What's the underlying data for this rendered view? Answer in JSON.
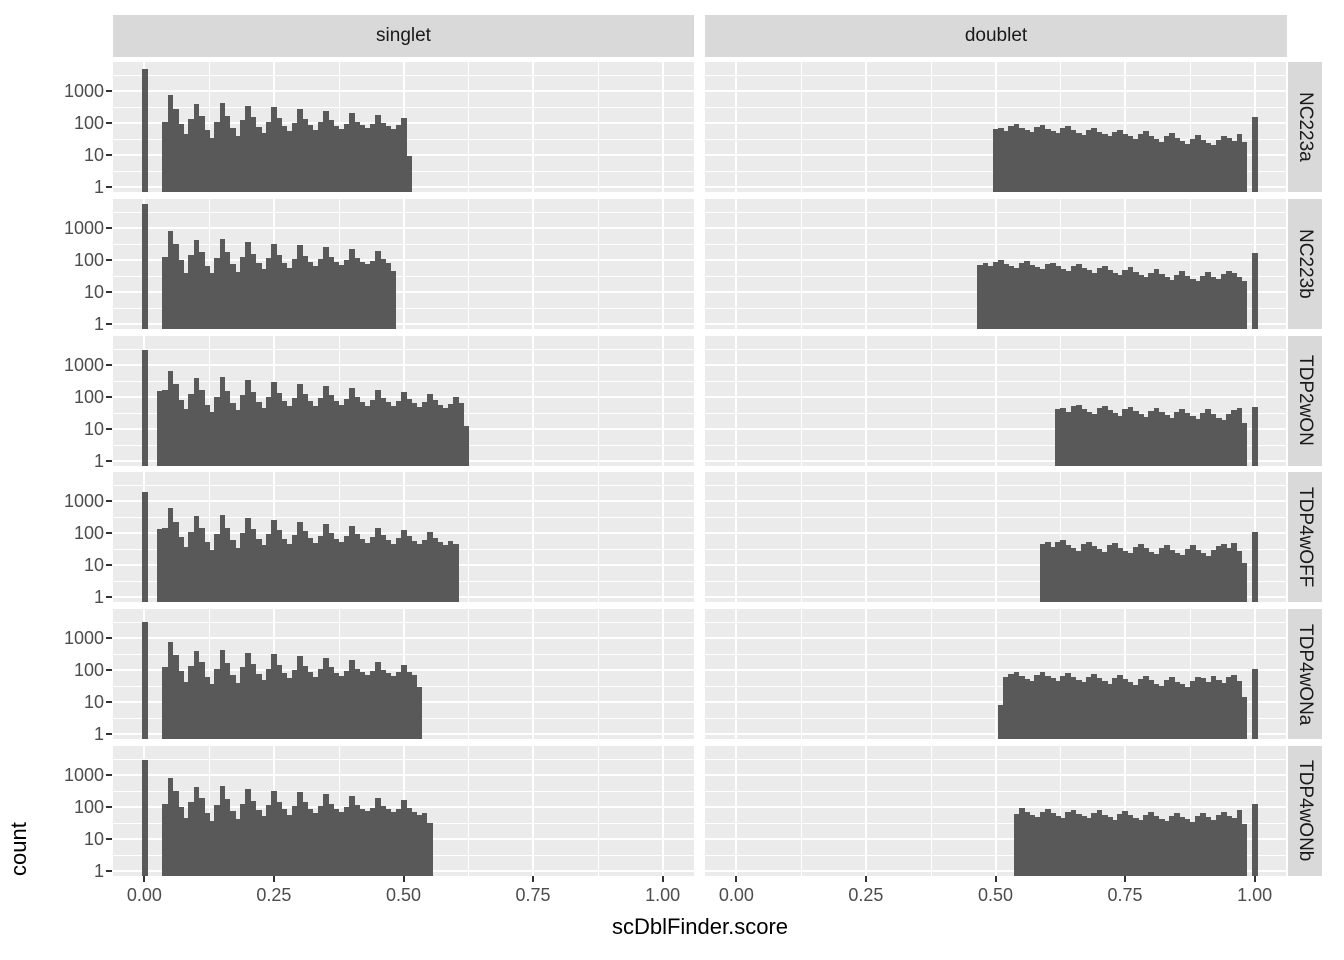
{
  "figure": {
    "xlabel": "scDblFinder.score",
    "ylabel": "count"
  },
  "chart_data": {
    "type": "histogram",
    "title": "",
    "xlabel": "scDblFinder.score",
    "ylabel": "count",
    "legend": "none",
    "grid": true,
    "y_scale": "log10",
    "facet_cols": [
      "singlet",
      "doublet"
    ],
    "facet_rows": [
      "NC223a",
      "NC223b",
      "TDP2wON",
      "TDP4wOFF",
      "TDP4wONa",
      "TDP4wONb"
    ],
    "x_ticks": {
      "values": [
        0,
        0.25,
        0.5,
        0.75,
        1
      ],
      "labels": [
        "0.00",
        "0.25",
        "0.50",
        "0.75",
        "1.00"
      ]
    },
    "y_ticks": {
      "values": [
        1,
        10,
        100,
        1000
      ],
      "labels": [
        "1",
        "10",
        "100",
        "1000"
      ]
    },
    "xlim": [
      -0.0605,
      1.0605
    ],
    "ylim_log": [
      0.7,
      8000
    ],
    "grid_minor_x": [
      0.125,
      0.375,
      0.625,
      0.875
    ],
    "grid_minor_y": [
      3.162,
      31.62,
      316.2,
      3162
    ],
    "bin_width": 0.01,
    "colors": {
      "bar": "#595959",
      "panel_bg": "#EBEBEB",
      "strip_bg": "#D9D9D9",
      "grid": "#FFFFFF",
      "axis_text": "#4D4D4D",
      "title_text": "#000000"
    },
    "panels": [
      {
        "row": "NC223a",
        "col": "singlet",
        "zero_bar": {
          "x": 0.0,
          "count": 5000
        },
        "run": {
          "x_start": 0.04,
          "counts": [
            110,
            750,
            280,
            90,
            45,
            130,
            400,
            170,
            60,
            35,
            110,
            430,
            160,
            70,
            40,
            120,
            340,
            150,
            75,
            50,
            110,
            310,
            140,
            80,
            55,
            100,
            270,
            130,
            85,
            60,
            105,
            240,
            120,
            80,
            65,
            95,
            210,
            110,
            85,
            70,
            90,
            180,
            100,
            80,
            65,
            85,
            140,
            9
          ]
        }
      },
      {
        "row": "NC223a",
        "col": "doublet",
        "run": {
          "x_start": 0.5,
          "counts": [
            65,
            70,
            58,
            80,
            90,
            72,
            60,
            52,
            75,
            85,
            66,
            55,
            48,
            68,
            78,
            60,
            50,
            42,
            60,
            70,
            54,
            44,
            38,
            52,
            62,
            46,
            38,
            32,
            45,
            55,
            40,
            32,
            26,
            38,
            48,
            34,
            27,
            22,
            32,
            42,
            30,
            24,
            20,
            30,
            40,
            35,
            28,
            45,
            25
          ]
        },
        "one_bar": {
          "x": 1.0,
          "count": 150
        }
      },
      {
        "row": "NC223b",
        "col": "singlet",
        "zero_bar": {
          "x": 0.0,
          "count": 5500
        },
        "run": {
          "x_start": 0.04,
          "counts": [
            120,
            800,
            300,
            95,
            40,
            140,
            420,
            180,
            65,
            38,
            115,
            450,
            170,
            75,
            42,
            125,
            360,
            155,
            78,
            52,
            112,
            320,
            145,
            82,
            57,
            103,
            280,
            135,
            88,
            62,
            107,
            250,
            125,
            83,
            67,
            97,
            220,
            115,
            88,
            72,
            92,
            190,
            105,
            82,
            45
          ]
        }
      },
      {
        "row": "NC223b",
        "col": "doublet",
        "run": {
          "x_start": 0.47,
          "counts": [
            70,
            78,
            62,
            85,
            95,
            76,
            64,
            55,
            80,
            90,
            70,
            58,
            50,
            72,
            82,
            64,
            53,
            45,
            64,
            74,
            57,
            47,
            40,
            55,
            66,
            49,
            40,
            34,
            48,
            58,
            42,
            34,
            28,
            40,
            50,
            36,
            29,
            24,
            34,
            45,
            32,
            26,
            21,
            32,
            42,
            30,
            25,
            35,
            46,
            38,
            30,
            22
          ]
        },
        "one_bar": {
          "x": 1.0,
          "count": 160
        }
      },
      {
        "row": "TDP2wON",
        "col": "singlet",
        "zero_bar": {
          "x": 0.0,
          "count": 2800
        },
        "run": {
          "x_start": 0.03,
          "counts": [
            150,
            160,
            650,
            240,
            80,
            40,
            120,
            380,
            160,
            55,
            32,
            100,
            400,
            150,
            65,
            38,
            110,
            320,
            140,
            70,
            45,
            100,
            280,
            130,
            72,
            50,
            92,
            240,
            120,
            74,
            52,
            88,
            210,
            110,
            72,
            54,
            84,
            185,
            100,
            70,
            52,
            80,
            160,
            92,
            66,
            50,
            74,
            140,
            84,
            62,
            48,
            68,
            120,
            76,
            56,
            44,
            60,
            95,
            62,
            12
          ]
        }
      },
      {
        "row": "TDP2wON",
        "col": "doublet",
        "run": {
          "x_start": 0.62,
          "counts": [
            40,
            45,
            32,
            50,
            55,
            42,
            34,
            28,
            44,
            52,
            38,
            30,
            25,
            40,
            48,
            35,
            28,
            23,
            36,
            45,
            32,
            26,
            21,
            33,
            42,
            30,
            24,
            20,
            30,
            40,
            28,
            22,
            18,
            28,
            38,
            45,
            15
          ]
        },
        "one_bar": {
          "x": 1.0,
          "count": 48
        }
      },
      {
        "row": "TDP4wOFF",
        "col": "singlet",
        "zero_bar": {
          "x": 0.0,
          "count": 2000
        },
        "run": {
          "x_start": 0.03,
          "counts": [
            140,
            150,
            600,
            220,
            75,
            38,
            110,
            350,
            150,
            52,
            30,
            95,
            380,
            145,
            62,
            36,
            105,
            300,
            135,
            66,
            43,
            95,
            265,
            125,
            68,
            48,
            88,
            230,
            115,
            70,
            50,
            84,
            200,
            105,
            68,
            52,
            80,
            175,
            95,
            66,
            50,
            76,
            150,
            88,
            62,
            48,
            70,
            130,
            80,
            58,
            45,
            64,
            110,
            72,
            52,
            42,
            56,
            45
          ]
        }
      },
      {
        "row": "TDP4wOFF",
        "col": "doublet",
        "run": {
          "x_start": 0.59,
          "counts": [
            45,
            55,
            38,
            52,
            60,
            44,
            35,
            29,
            46,
            54,
            40,
            32,
            26,
            42,
            50,
            36,
            29,
            24,
            38,
            47,
            34,
            27,
            22,
            35,
            44,
            31,
            25,
            21,
            32,
            42,
            30,
            24,
            20,
            31,
            40,
            45,
            35,
            50,
            28,
            12
          ]
        },
        "one_bar": {
          "x": 1.0,
          "count": 110
        }
      },
      {
        "row": "TDP4wONa",
        "col": "singlet",
        "zero_bar": {
          "x": 0.0,
          "count": 3200
        },
        "run": {
          "x_start": 0.04,
          "counts": [
            130,
            760,
            290,
            92,
            42,
            135,
            410,
            175,
            62,
            36,
            112,
            440,
            165,
            72,
            41,
            122,
            350,
            152,
            76,
            51,
            111,
            315,
            142,
            81,
            56,
            101,
            275,
            132,
            86,
            61,
            106,
            245,
            122,
            81,
            66,
            96,
            215,
            112,
            86,
            71,
            91,
            185,
            102,
            81,
            66,
            86,
            150,
            90,
            70,
            30
          ]
        }
      },
      {
        "row": "TDP4wONa",
        "col": "doublet",
        "run": {
          "x_start": 0.51,
          "counts": [
            8,
            60,
            75,
            85,
            65,
            52,
            45,
            70,
            90,
            68,
            55,
            46,
            66,
            80,
            60,
            50,
            42,
            62,
            76,
            56,
            46,
            38,
            56,
            70,
            52,
            42,
            35,
            52,
            66,
            48,
            38,
            32,
            48,
            62,
            44,
            36,
            30,
            45,
            60,
            55,
            42,
            68,
            50,
            40,
            60,
            70,
            45,
            15
          ]
        },
        "one_bar": {
          "x": 1.0,
          "count": 110
        }
      },
      {
        "row": "TDP4wONb",
        "col": "singlet",
        "zero_bar": {
          "x": 0.0,
          "count": 3000
        },
        "run": {
          "x_start": 0.04,
          "counts": [
            125,
            820,
            310,
            98,
            44,
            138,
            430,
            185,
            64,
            37,
            118,
            460,
            172,
            74,
            43,
            126,
            365,
            158,
            79,
            53,
            114,
            325,
            148,
            84,
            58,
            104,
            285,
            138,
            89,
            63,
            108,
            255,
            128,
            84,
            68,
            98,
            225,
            118,
            89,
            73,
            94,
            195,
            108,
            84,
            68,
            88,
            160,
            94,
            72,
            58,
            66,
            32
          ]
        }
      },
      {
        "row": "TDP4wONb",
        "col": "doublet",
        "run": {
          "x_start": 0.54,
          "counts": [
            60,
            95,
            70,
            58,
            50,
            72,
            88,
            66,
            54,
            46,
            68,
            82,
            62,
            52,
            44,
            64,
            78,
            58,
            48,
            40,
            60,
            74,
            55,
            45,
            38,
            56,
            70,
            52,
            43,
            36,
            53,
            67,
            50,
            41,
            35,
            52,
            66,
            48,
            40,
            56,
            72,
            54,
            44,
            80,
            30
          ]
        },
        "one_bar": {
          "x": 1.0,
          "count": 120
        }
      }
    ]
  }
}
